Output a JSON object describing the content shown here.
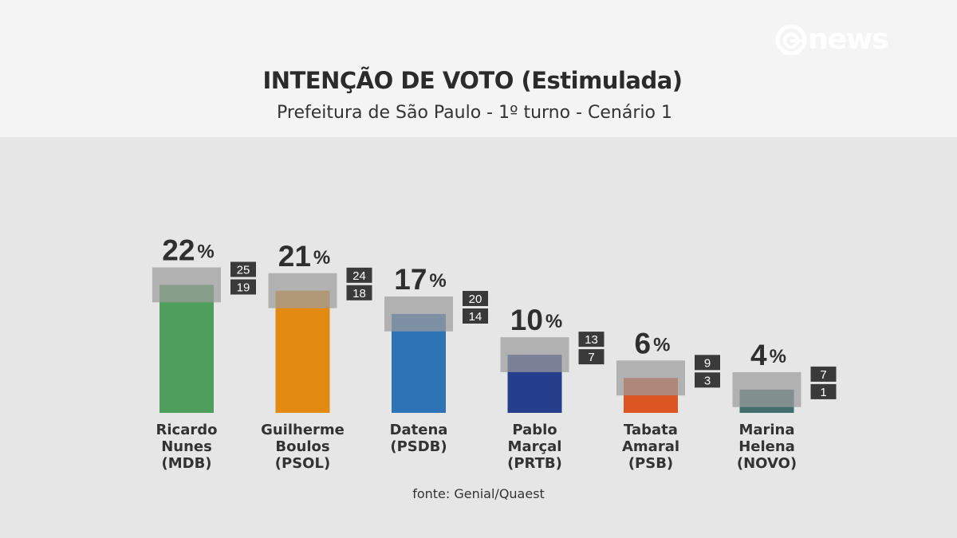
{
  "header": {
    "title": "INTENÇÃO DE VOTO (Estimulada)",
    "subtitle": "Prefeitura de São Paulo - 1º turno - Cenário 1",
    "logo_text": "news"
  },
  "source": "fonte: Genial/Quaest",
  "chart_data": {
    "type": "bar",
    "title": "INTENÇÃO DE VOTO (Estimulada)",
    "subtitle": "Prefeitura de São Paulo - 1º turno - Cenário 1",
    "categories": [
      "Ricardo Nunes (MDB)",
      "Guilherme Boulos (PSOL)",
      "Datena (PSDB)",
      "Pablo Marçal (PRTB)",
      "Tabata Amaral (PSB)",
      "Marina Helena (NOVO)"
    ],
    "unit": "%",
    "percent_sign": "%",
    "bars": [
      {
        "lines": [
          "Ricardo",
          "Nunes",
          "(MDB)"
        ],
        "value": 22,
        "upper": 25,
        "lower": 19,
        "color": "#4e9f5c"
      },
      {
        "lines": [
          "Guilherme",
          "Boulos",
          "(PSOL)"
        ],
        "value": 21,
        "upper": 24,
        "lower": 18,
        "color": "#e28a12"
      },
      {
        "lines": [
          "Datena",
          "(PSDB)"
        ],
        "value": 17,
        "upper": 20,
        "lower": 14,
        "color": "#2f73b7"
      },
      {
        "lines": [
          "Pablo",
          "Marçal",
          "(PRTB)"
        ],
        "value": 10,
        "upper": 13,
        "lower": 7,
        "color": "#253f8d"
      },
      {
        "lines": [
          "Tabata",
          "Amaral",
          "(PSB)"
        ],
        "value": 6,
        "upper": 9,
        "lower": 3,
        "color": "#dd5522"
      },
      {
        "lines": [
          "Marina",
          "Helena",
          "(NOVO)"
        ],
        "value": 4,
        "upper": 7,
        "lower": 1,
        "color": "#3f6e6c"
      }
    ],
    "colors": {
      "range_band": "#9c9c9c",
      "badge_bg": "#3a3a3a",
      "badge_text": "#ffffff",
      "value_text": "#2f2f2f"
    },
    "ylim": [
      0,
      25
    ],
    "grid": false,
    "legend": "none"
  }
}
